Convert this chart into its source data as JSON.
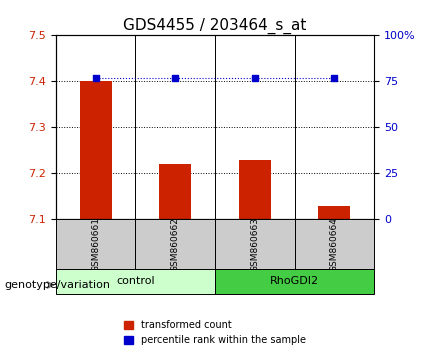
{
  "title": "GDS4455 / 203464_s_at",
  "samples": [
    "GSM860661",
    "GSM860662",
    "GSM860663",
    "GSM860664"
  ],
  "red_values": [
    7.4,
    7.22,
    7.23,
    7.13
  ],
  "blue_values": [
    77,
    77,
    77,
    77
  ],
  "ylim_left": [
    7.1,
    7.5
  ],
  "ylim_right": [
    0,
    100
  ],
  "yticks_left": [
    7.1,
    7.2,
    7.3,
    7.4,
    7.5
  ],
  "yticks_right": [
    0,
    25,
    50,
    75,
    100
  ],
  "ytick_labels_right": [
    "0",
    "25",
    "50",
    "75",
    "100%"
  ],
  "groups": [
    {
      "label": "control",
      "samples": [
        0,
        1
      ],
      "color": "#ccffcc"
    },
    {
      "label": "RhoGDI2",
      "samples": [
        2,
        3
      ],
      "color": "#44cc44"
    }
  ],
  "bar_color": "#cc2200",
  "dot_color": "#0000cc",
  "grid_color": "#000000",
  "sample_box_color": "#cccccc",
  "legend_red_label": "transformed count",
  "legend_blue_label": "percentile rank within the sample",
  "genotype_label": "genotype/variation",
  "x_positions": [
    1,
    2,
    3,
    4
  ],
  "bar_bottom": 7.1,
  "bar_width": 0.4
}
